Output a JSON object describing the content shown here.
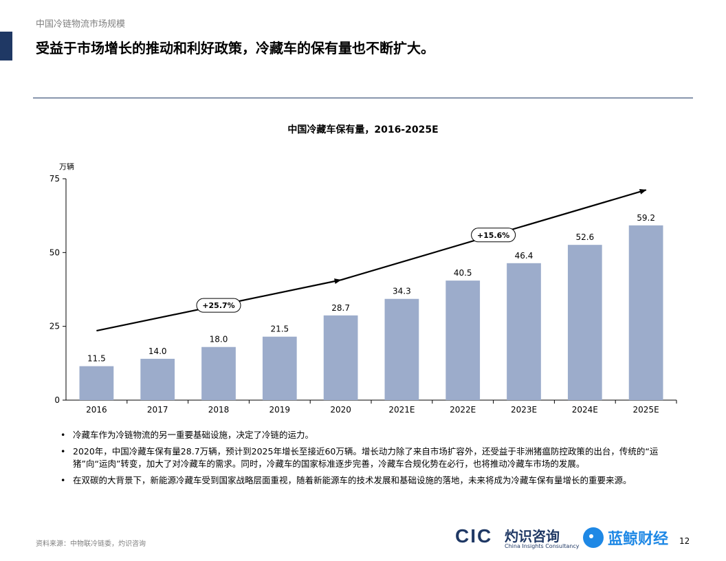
{
  "header": {
    "section_label": "中国冷链物流市场规模",
    "headline": "受益于市场增长的推动和利好政策，冷藏车的保有量也不断扩大。"
  },
  "chart_data": {
    "type": "bar",
    "title": "中国冷藏车保有量，2016-2025E",
    "ylabel": "万辆",
    "xlabel": "",
    "ylim": [
      0,
      75
    ],
    "yticks": [
      0,
      25,
      50,
      75
    ],
    "categories": [
      "2016",
      "2017",
      "2018",
      "2019",
      "2020",
      "2021E",
      "2022E",
      "2023E",
      "2024E",
      "2025E"
    ],
    "values": [
      11.5,
      14.0,
      18.0,
      21.5,
      28.7,
      34.3,
      40.5,
      46.4,
      52.6,
      59.2
    ],
    "value_labels": [
      "11.5",
      "14.0",
      "18.0",
      "21.5",
      "28.7",
      "34.3",
      "40.5",
      "46.4",
      "52.6",
      "59.2"
    ],
    "bar_color": "#9caccb",
    "annotations": [
      {
        "text": "+25.7%",
        "from": "2016",
        "to": "2020"
      },
      {
        "text": "+15.6%",
        "from": "2020",
        "to": "2025E"
      }
    ]
  },
  "bullets": [
    "冷藏车作为冷链物流的另一重要基础设施，决定了冷链的运力。",
    "2020年，中国冷藏车保有量28.7万辆，预计到2025年增长至接近60万辆。增长动力除了来自市场扩容外，还受益于非洲猪瘟防控政策的出台，传统的“运猪”向“运肉”转变，加大了对冷藏车的需求。同时，冷藏车的国家标准逐步完善，冷藏车合规化势在必行，也将推动冷藏车市场的发展。",
    "在双碳的大背景下，新能源冷藏车受到国家战略层面重视，随着新能源车的技术发展和基础设施的落地，未来将成为冷藏车保有量增长的重要来源。"
  ],
  "footer": {
    "source": "资料来源：中物联冷链委，灼识咨询",
    "logo_cic_mark": "CIC",
    "logo_cic_cn": "灼识咨询",
    "logo_cic_en": "China Insights Consultancy",
    "logo_lanjing": "蓝鲸财经",
    "page_number": "12"
  },
  "colors": {
    "accent": "#1f3864",
    "bar": "#9caccb",
    "lanjing_blue": "#1e88e5"
  }
}
